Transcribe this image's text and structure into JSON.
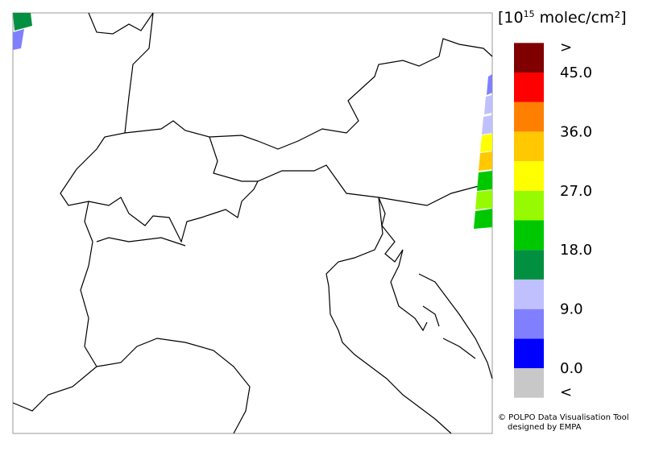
{
  "legend": {
    "unit": {
      "prefix": "[10",
      "exponent": "15",
      "suffix": " molec/cm²]"
    },
    "bins": [
      0,
      4.5,
      9,
      13.5,
      18,
      22.5,
      27,
      31.5,
      36,
      40.5,
      45
    ],
    "colors": [
      "#0000ff",
      "#8080ff",
      "#c0c0ff",
      "#009040",
      "#00c800",
      "#98fa00",
      "#ffff00",
      "#ffc800",
      "#ff8000",
      "#ff0000"
    ],
    "over_color": "#800000",
    "under_color": "#c8c8c8",
    "over_label": ">",
    "under_label": "<",
    "ticks": [
      {
        "value": 45,
        "label": "45.0"
      },
      {
        "value": 36,
        "label": "36.0"
      },
      {
        "value": 27,
        "label": "27.0"
      },
      {
        "value": 18,
        "label": "18.0"
      },
      {
        "value": 9,
        "label": "9.0"
      },
      {
        "value": 0,
        "label": "0.0"
      }
    ]
  },
  "credit": {
    "line1": "© POLPO Data Visualisation Tool",
    "line2": "designed by EMPA"
  }
}
